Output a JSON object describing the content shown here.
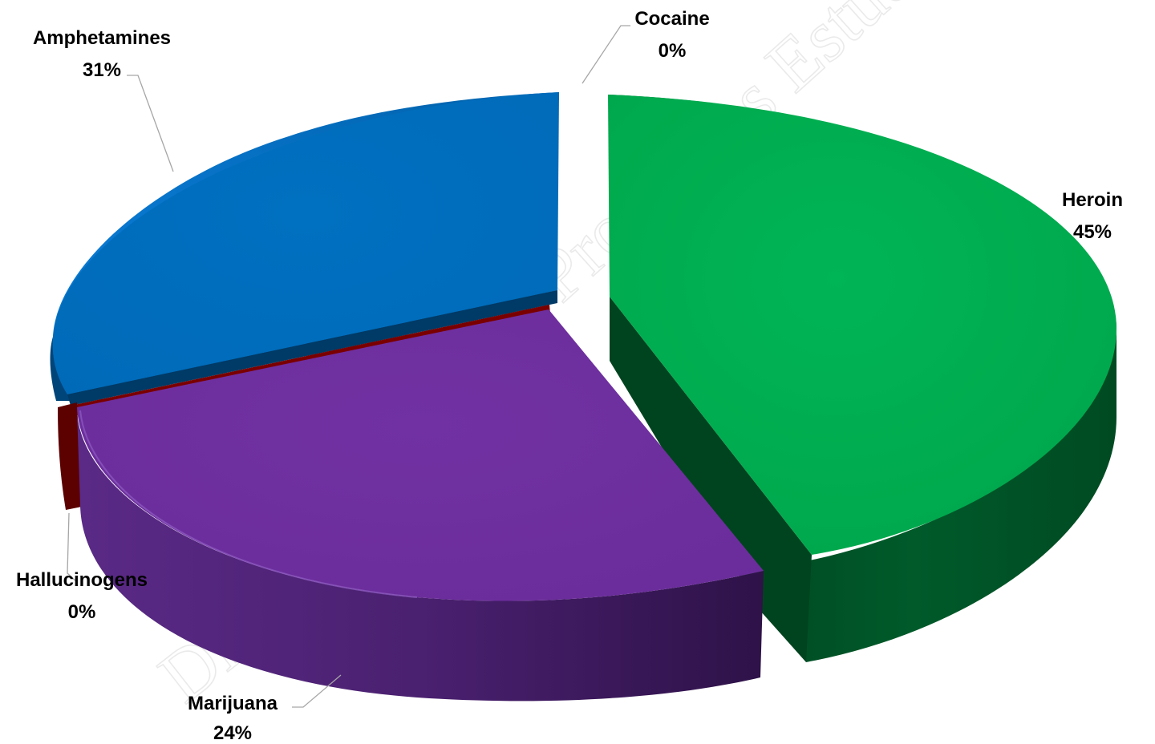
{
  "chart_data": {
    "type": "pie",
    "variant": "3d-exploded",
    "categories": [
      "Heroin",
      "Marijuana",
      "Hallucinogens",
      "Amphetamines",
      "Cocaine"
    ],
    "values": [
      45,
      24,
      0,
      31,
      0
    ],
    "labels": [
      {
        "name": "Heroin",
        "pct": "45%"
      },
      {
        "name": "Marijuana",
        "pct": "24%"
      },
      {
        "name": "Hallucinogens",
        "pct": "0%"
      },
      {
        "name": "Amphetamines",
        "pct": "31%"
      },
      {
        "name": "Cocaine",
        "pct": "0%"
      }
    ],
    "colors": {
      "Heroin": "#00ad4f",
      "Marijuana": "#7030a0",
      "Hallucinogens": "#7a0000",
      "Amphetamines": "#0070c0",
      "Cocaine": "#ffffff"
    },
    "legend": "none",
    "data_labels": "outside with leader lines"
  },
  "watermark": "Dissemination...Productos...Estudes"
}
